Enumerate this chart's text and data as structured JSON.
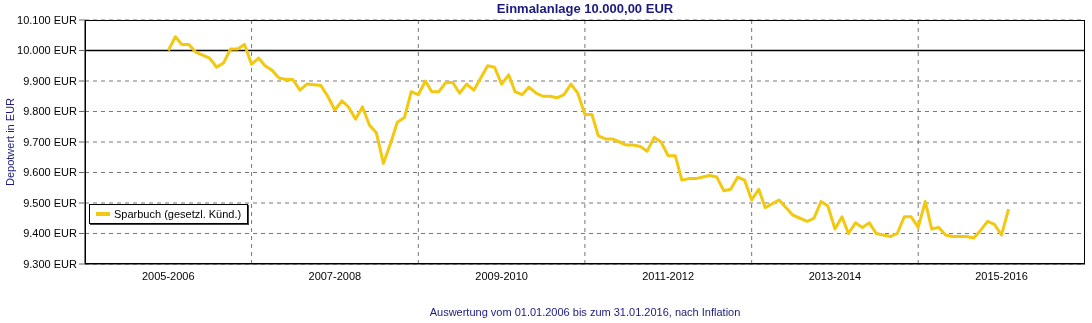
{
  "chart_data": {
    "type": "line",
    "title": "Einmalanlage 10.000,00 EUR",
    "ylabel": "Depotwert in EUR",
    "annotations": [
      "Auswertung vom 01.01.2006 bis zum 31.01.2016, nach Inflation"
    ],
    "x": [
      "2006-01",
      "2006-02",
      "2006-03",
      "2006-04",
      "2006-05",
      "2006-07",
      "2006-08",
      "2006-09",
      "2006-10",
      "2006-11",
      "2006-12",
      "2007-01",
      "2007-02",
      "2007-03",
      "2007-04",
      "2007-05",
      "2007-06",
      "2007-07",
      "2007-08",
      "2007-09",
      "2007-11",
      "2007-12",
      "2008-01",
      "2008-02",
      "2008-03",
      "2008-04",
      "2008-05",
      "2008-06",
      "2008-07",
      "2008-08",
      "2008-09",
      "2008-10",
      "2008-11",
      "2008-12",
      "2009-01",
      "2009-02",
      "2009-03",
      "2009-04",
      "2009-05",
      "2009-06",
      "2009-07",
      "2009-08",
      "2009-09",
      "2009-11",
      "2009-12",
      "2010-01",
      "2010-02",
      "2010-03",
      "2010-04",
      "2010-05",
      "2010-06",
      "2010-07",
      "2010-08",
      "2010-09",
      "2010-10",
      "2010-11",
      "2010-12",
      "2011-01",
      "2011-02",
      "2011-03",
      "2011-04",
      "2011-05",
      "2011-06",
      "2011-07",
      "2011-08",
      "2011-09",
      "2011-10",
      "2011-11",
      "2011-12",
      "2012-01",
      "2012-02",
      "2012-03",
      "2012-04",
      "2012-05",
      "2012-06",
      "2012-07",
      "2012-08",
      "2012-09",
      "2012-10",
      "2012-11",
      "2012-12",
      "2013-01",
      "2013-02",
      "2013-03",
      "2013-05",
      "2013-07",
      "2013-08",
      "2013-09",
      "2013-10",
      "2013-11",
      "2013-12",
      "2014-01",
      "2014-02",
      "2014-03",
      "2014-04",
      "2014-05",
      "2014-06",
      "2014-07",
      "2014-08",
      "2014-09",
      "2014-10",
      "2014-11",
      "2014-12",
      "2015-01",
      "2015-02",
      "2015-03",
      "2015-04",
      "2015-05",
      "2015-06",
      "2015-07",
      "2015-08",
      "2015-09",
      "2015-10",
      "2015-11",
      "2015-12",
      "2016-01",
      "2016-02"
    ],
    "series": [
      {
        "name": "Sparbuch (gesetzl. Künd.)",
        "color": "#f2c811",
        "values": [
          10000,
          10045,
          10020,
          10020,
          9995,
          9975,
          9945,
          9960,
          10005,
          10005,
          10020,
          9955,
          9975,
          9950,
          9935,
          9910,
          9905,
          9905,
          9870,
          9890,
          9885,
          9850,
          9805,
          9835,
          9815,
          9775,
          9815,
          9755,
          9730,
          9630,
          9695,
          9765,
          9780,
          9865,
          9855,
          9900,
          9865,
          9865,
          9895,
          9895,
          9860,
          9890,
          9870,
          9950,
          9945,
          9890,
          9920,
          9865,
          9855,
          9880,
          9860,
          9850,
          9850,
          9845,
          9855,
          9890,
          9860,
          9790,
          9790,
          9720,
          9710,
          9710,
          9700,
          9690,
          9690,
          9685,
          9670,
          9715,
          9700,
          9655,
          9655,
          9575,
          9580,
          9580,
          9585,
          9590,
          9585,
          9540,
          9545,
          9585,
          9575,
          9510,
          9545,
          9485,
          9510,
          9460,
          9450,
          9440,
          9450,
          9505,
          9490,
          9415,
          9455,
          9400,
          9435,
          9420,
          9435,
          9400,
          9395,
          9390,
          9400,
          9455,
          9455,
          9420,
          9505,
          9415,
          9420,
          9395,
          9390,
          9390,
          9390,
          9385,
          9410,
          9440,
          9430,
          9395,
          9480
        ]
      }
    ],
    "xlim": [
      "2005-01",
      "2017-01"
    ],
    "xticks": [
      {
        "value": "2006-01",
        "label": "2005-2006"
      },
      {
        "value": "2007-01",
        "label": null
      },
      {
        "value": "2008-01",
        "label": "2007-2008"
      },
      {
        "value": "2009-01",
        "label": null
      },
      {
        "value": "2010-01",
        "label": "2009-2010"
      },
      {
        "value": "2011-01",
        "label": null
      },
      {
        "value": "2012-01",
        "label": "2011-2012"
      },
      {
        "value": "2013-01",
        "label": null
      },
      {
        "value": "2014-01",
        "label": "2013-2014"
      },
      {
        "value": "2015-01",
        "label": null
      },
      {
        "value": "2016-01",
        "label": "2015-2016"
      }
    ],
    "ylim": [
      9300,
      10100
    ],
    "yticks": [
      {
        "value": 9300,
        "label": "9.300 EUR"
      },
      {
        "value": 9400,
        "label": "9.400 EUR"
      },
      {
        "value": 9500,
        "label": "9.500 EUR"
      },
      {
        "value": 9600,
        "label": "9.600 EUR"
      },
      {
        "value": 9700,
        "label": "9.700 EUR"
      },
      {
        "value": 9800,
        "label": "9.800 EUR"
      },
      {
        "value": 9900,
        "label": "9.900 EUR"
      },
      {
        "value": 10000,
        "label": "10.000 EUR"
      },
      {
        "value": 10100,
        "label": "10.100 EUR"
      }
    ],
    "ref_lines": [
      {
        "axis": "y",
        "value": 10000,
        "color": "#000000",
        "line_style": "solid"
      }
    ],
    "grid": true,
    "legend": "bottom left",
    "line_style": "solid"
  }
}
